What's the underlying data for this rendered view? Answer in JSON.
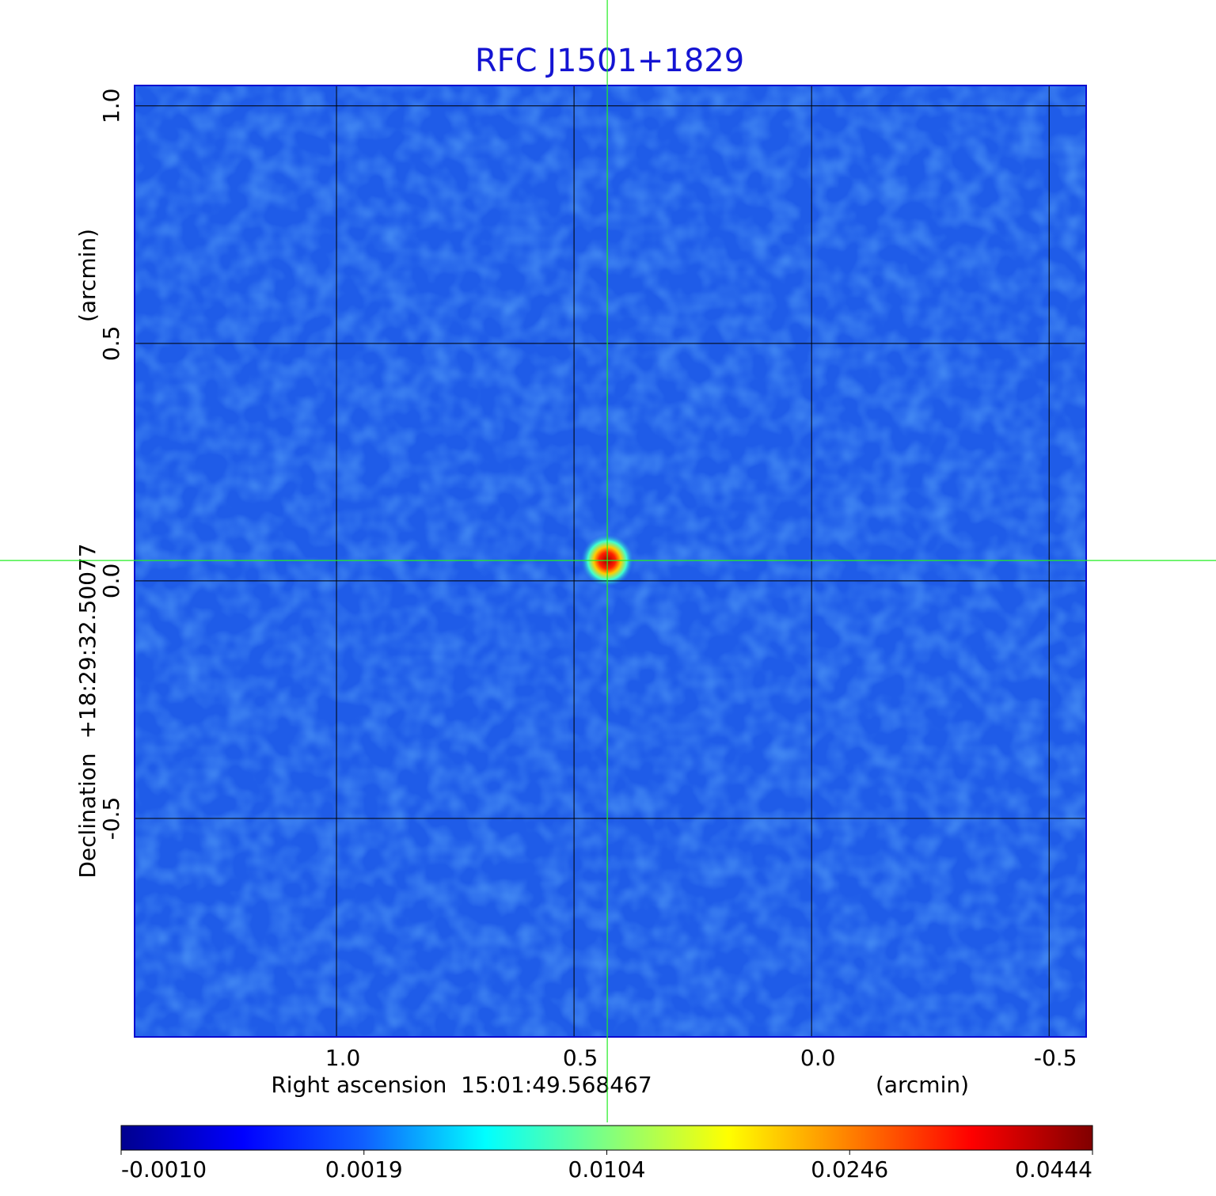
{
  "chart_data": {
    "type": "image",
    "title": "RFC J1501+1829",
    "x_label": "Right ascension  15:01:49.568467",
    "x_unit": "(arcmin)",
    "y_label": "Declination  +18:29:32.50077",
    "y_unit": "(arcmin)",
    "xlim": [
      1.425,
      -0.578
    ],
    "ylim": [
      -0.96,
      1.043
    ],
    "xticks": [
      {
        "value": 1.0,
        "label": "1.0"
      },
      {
        "value": 0.5,
        "label": "0.5"
      },
      {
        "value": 0.0,
        "label": "0.0"
      },
      {
        "value": -0.5,
        "label": "-0.5"
      }
    ],
    "yticks": [
      {
        "value": 1.0,
        "label": "1.0"
      },
      {
        "value": 0.5,
        "label": "0.5"
      },
      {
        "value": 0.0,
        "label": "0.0"
      },
      {
        "value": -0.5,
        "label": "-0.5"
      }
    ],
    "grid": true,
    "field_color": "#1f5ce8",
    "source": {
      "x": 0.43,
      "y": 0.043,
      "value": 0.0444
    },
    "colorbar_ticks": [
      {
        "value": -0.001,
        "label": "-0.0010"
      },
      {
        "value": 0.0019,
        "label": "0.0019"
      },
      {
        "value": 0.0104,
        "label": "0.0104"
      },
      {
        "value": 0.0246,
        "label": "0.0246"
      },
      {
        "value": 0.0444,
        "label": "0.0444"
      }
    ],
    "colormap": [
      "#00008f",
      "#0000ff",
      "#1060ff",
      "#00ffff",
      "#80ff80",
      "#ffff00",
      "#ff8000",
      "#ff0000",
      "#800000"
    ]
  }
}
